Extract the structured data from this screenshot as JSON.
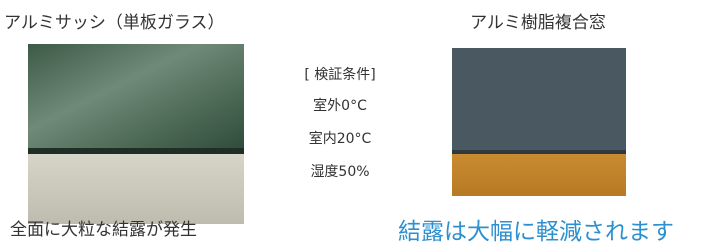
{
  "left": {
    "title": "アルミサッシ（単板ガラス）",
    "caption": "全面に大粒な結露が発生"
  },
  "conditions": {
    "heading": "[ 検証条件]",
    "items": [
      "室外0°C",
      "室内20°C",
      "湿度50%"
    ]
  },
  "right": {
    "title": "アルミ樹脂複合窓",
    "caption": "結露は大幅に軽減されます"
  }
}
